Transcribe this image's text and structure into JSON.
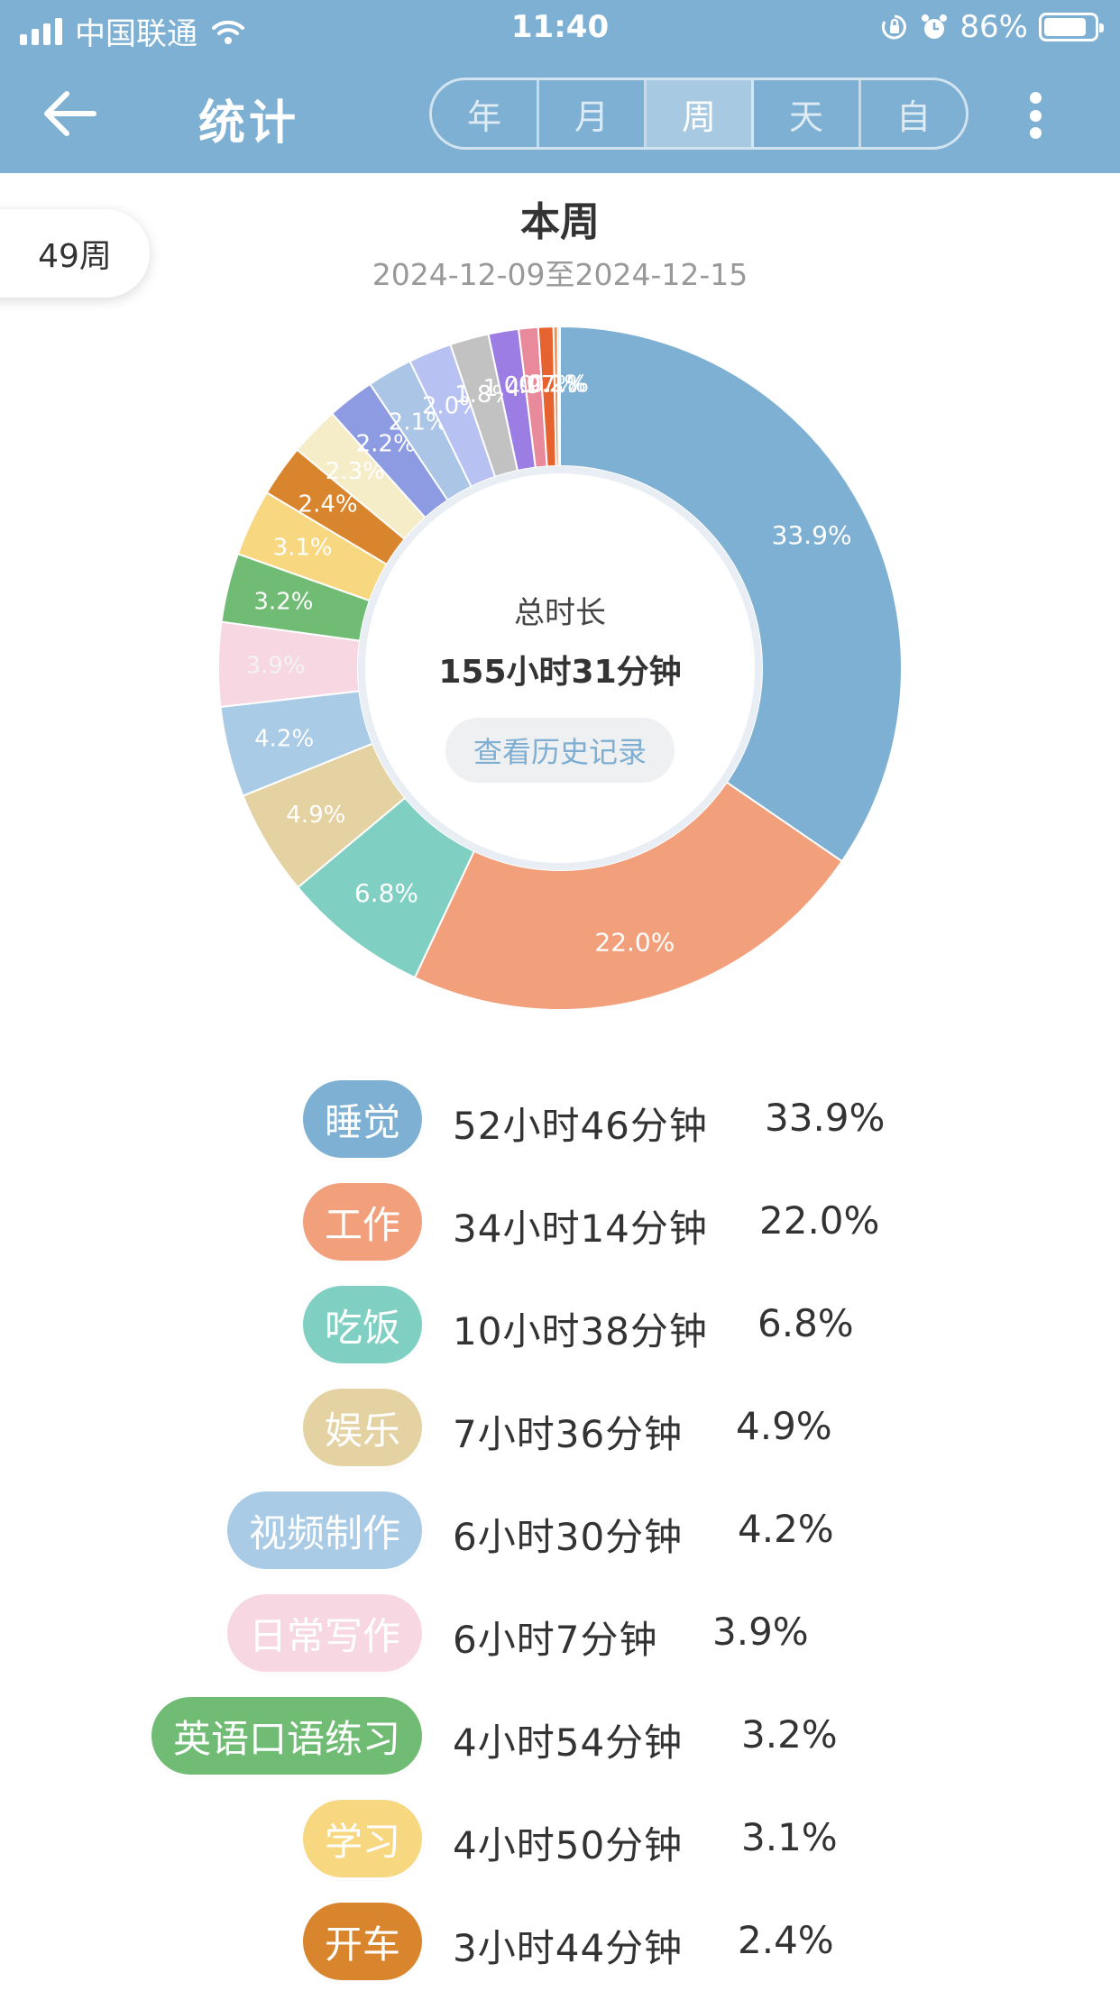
{
  "status_bar": {
    "carrier": "中国联通",
    "time": "11:40",
    "battery_percent": "86%",
    "battery_level": 0.86
  },
  "nav": {
    "title": "统计",
    "tabs": [
      {
        "label": "年",
        "active": false
      },
      {
        "label": "月",
        "active": false
      },
      {
        "label": "周",
        "active": true
      },
      {
        "label": "天",
        "active": false
      },
      {
        "label": "自",
        "active": false
      }
    ]
  },
  "week_badge": "49周",
  "period": {
    "title": "本周",
    "range": "2024-12-09至2024-12-15"
  },
  "summary": {
    "label": "总时长",
    "total": "155小时31分钟",
    "history_button": "查看历史记录"
  },
  "chart_data": {
    "type": "pie",
    "categories": [
      "睡觉",
      "工作",
      "吃饭",
      "娱乐",
      "视频制作",
      "日常写作",
      "英语口语练习",
      "学习",
      "开车",
      "",
      "",
      "",
      "",
      "",
      "",
      "",
      "",
      "",
      ""
    ],
    "values": [
      33.9,
      22.0,
      6.8,
      4.9,
      4.2,
      3.9,
      3.2,
      3.1,
      2.4,
      2.3,
      2.2,
      2.1,
      2.0,
      1.8,
      1.4,
      0.9,
      0.7,
      0.2,
      0.1
    ],
    "labels": [
      "33.9%",
      "22.0%",
      "6.8%",
      "4.9%",
      "4.2%",
      "3.9%",
      "3.2%",
      "3.1%",
      "2.4%",
      "2.3%",
      "2.2%",
      "2.1%",
      "2.0%",
      "1.8%",
      "1.4%",
      "0.9%",
      "0.7%",
      "0.2%",
      "0.1%"
    ],
    "colors": [
      "#7eb0d3",
      "#f2a07b",
      "#7fd0c2",
      "#e4d2a3",
      "#a9cbe5",
      "#f6d7e2",
      "#71bc75",
      "#f8d781",
      "#d8852e",
      "#f5ecc8",
      "#8d9be3",
      "#aac5e5",
      "#b7c1f2",
      "#c2c2c2",
      "#9c7de3",
      "#e98a9c",
      "#e6622f",
      "#ef8a4a",
      "#f4b190"
    ],
    "label_colors": [
      "#ffffff",
      "#ffffff",
      "#ffffff",
      "#ffffff",
      "#ffffff",
      "#f3f3f3",
      "#ffffff",
      "#ffffff",
      "#ffffff",
      "#ffffff",
      "#ffffff",
      "#ffffff",
      "#ffffff",
      "#ffffff",
      "#ffffff",
      "#ffffff",
      "#ffffff",
      "#ffffff",
      "#ffffff"
    ],
    "legend_placement": "below"
  },
  "legend": [
    {
      "name": "睡觉",
      "duration": "52小时46分钟",
      "percent": "33.9%",
      "color": "#7eb0d3"
    },
    {
      "name": "工作",
      "duration": "34小时14分钟",
      "percent": "22.0%",
      "color": "#f2a07b"
    },
    {
      "name": "吃饭",
      "duration": "10小时38分钟",
      "percent": "6.8%",
      "color": "#7fd0c2"
    },
    {
      "name": "娱乐",
      "duration": "7小时36分钟",
      "percent": "4.9%",
      "color": "#e4d2a3"
    },
    {
      "name": "视频制作",
      "duration": "6小时30分钟",
      "percent": "4.2%",
      "color": "#a9cbe5"
    },
    {
      "name": "日常写作",
      "duration": "6小时7分钟",
      "percent": "3.9%",
      "color": "#f6d7e2"
    },
    {
      "name": "英语口语练习",
      "duration": "4小时54分钟",
      "percent": "3.2%",
      "color": "#71bc75"
    },
    {
      "name": "学习",
      "duration": "4小时50分钟",
      "percent": "3.1%",
      "color": "#f8d781"
    },
    {
      "name": "开车",
      "duration": "3小时44分钟",
      "percent": "2.4%",
      "color": "#d8852e"
    }
  ]
}
